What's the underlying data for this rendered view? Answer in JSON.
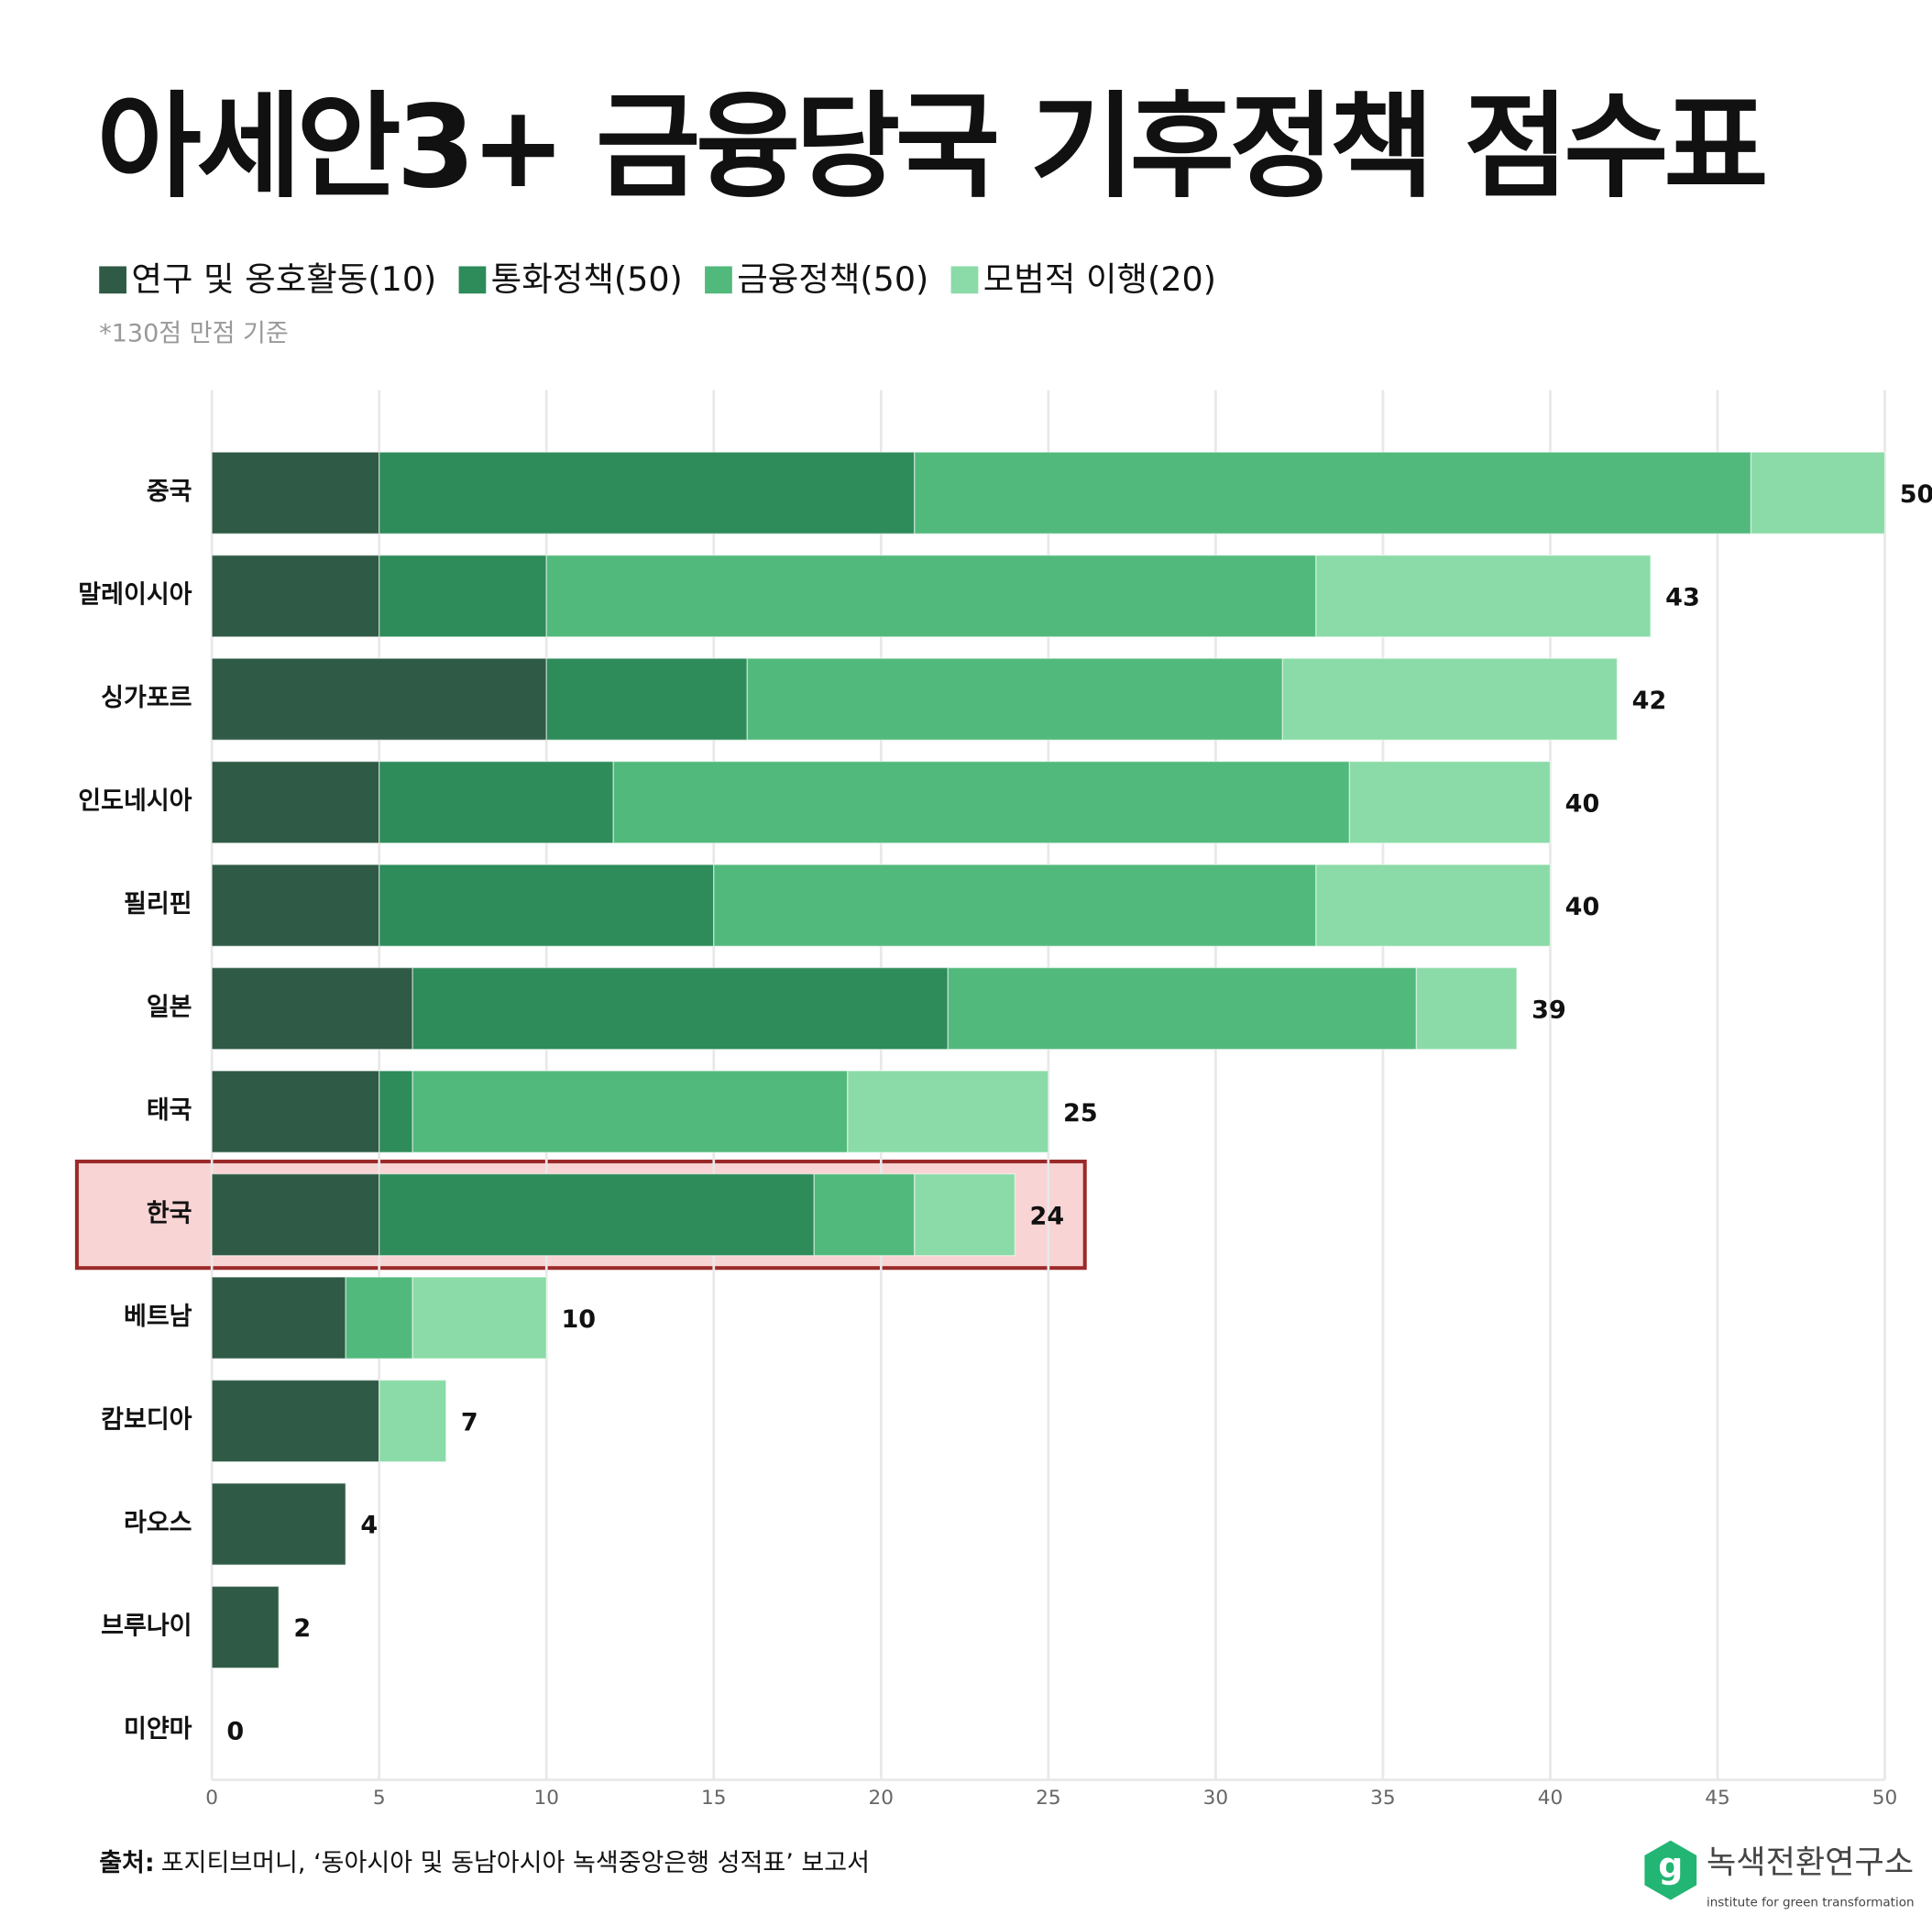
{
  "chart_data": {
    "type": "stacked-barh",
    "title": "아세안3+ 금융당국 기후정책 점수표",
    "note": "*130점 만점 기준",
    "categories": [
      "중국",
      "말레이시아",
      "싱가포르",
      "인도네시아",
      "필리핀",
      "일본",
      "태국",
      "한국",
      "베트남",
      "캄보디아",
      "라오스",
      "브루나이",
      "미얀마"
    ],
    "series": [
      {
        "name": "연구 및 옹호활동(10)",
        "color": "#2f5a45",
        "values": [
          5,
          5,
          10,
          5,
          5,
          6,
          5,
          5,
          4,
          5,
          4,
          2,
          0
        ]
      },
      {
        "name": "통화정책(50)",
        "color": "#2e8b5a",
        "values": [
          16,
          5,
          6,
          7,
          10,
          16,
          1,
          13,
          0,
          0,
          0,
          0,
          0
        ]
      },
      {
        "name": "금융정책(50)",
        "color": "#52b97c",
        "values": [
          25,
          23,
          16,
          22,
          18,
          14,
          13,
          3,
          2,
          0,
          0,
          0,
          0
        ]
      },
      {
        "name": "모범적 이행(20)",
        "color": "#8adba7",
        "values": [
          4,
          10,
          10,
          6,
          7,
          3,
          6,
          3,
          4,
          2,
          0,
          0,
          0
        ]
      }
    ],
    "totals": [
      50,
      43,
      42,
      40,
      40,
      39,
      25,
      24,
      10,
      7,
      4,
      2,
      0
    ],
    "xlim": [
      0,
      50
    ],
    "xticks": [
      0,
      5,
      10,
      15,
      20,
      25,
      30,
      35,
      40,
      45,
      50
    ],
    "grid": true,
    "highlight": {
      "category_index": 7,
      "fill": "#f9d4d4",
      "stroke": "#9b2a2a"
    },
    "source_label": "출처:",
    "source": "포지티브머니, ‘동아시아 및 동남아시아 녹색중앙은행 성적표’ 보고서",
    "logo": {
      "mark": "g",
      "name": "녹색전환연구소",
      "tagline": "institute for green transformation"
    }
  }
}
